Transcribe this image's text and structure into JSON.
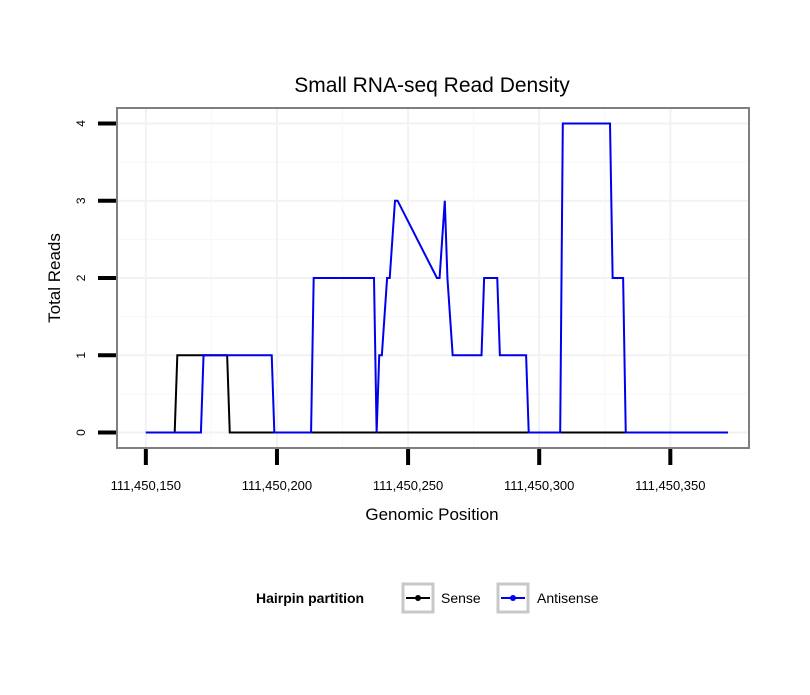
{
  "chart_data": {
    "type": "line",
    "title": "Small RNA-seq Read Density",
    "xlabel": "Genomic Position",
    "ylabel": "Total Reads",
    "xlim": [
      111450139,
      111450380
    ],
    "ylim": [
      -0.2,
      4.2
    ],
    "x_ticks": [
      111450150,
      111450200,
      111450250,
      111450300,
      111450350
    ],
    "x_tick_labels": [
      "111,450,150",
      "111,450,200",
      "111,450,250",
      "111,450,300",
      "111,450,350"
    ],
    "y_ticks": [
      0,
      1,
      2,
      3,
      4
    ],
    "y_tick_labels": [
      "0",
      "1",
      "2",
      "3",
      "4"
    ],
    "grid": true,
    "legend_position": "bottom",
    "legend_title": "Hairpin partition",
    "series": [
      {
        "name": "Sense",
        "color": "#000000",
        "x": [
          111450150,
          111450161,
          111450162,
          111450181,
          111450182,
          111450372
        ],
        "y": [
          0,
          0,
          1,
          1,
          0,
          0
        ]
      },
      {
        "name": "Antisense",
        "color": "#0000ee",
        "x": [
          111450150,
          111450171,
          111450172,
          111450198,
          111450199,
          111450213,
          111450214,
          111450237,
          111450238,
          111450239,
          111450240,
          111450242,
          111450243,
          111450245,
          111450246,
          111450261,
          111450262,
          111450264,
          111450265,
          111450267,
          111450268,
          111450278,
          111450279,
          111450284,
          111450285,
          111450295,
          111450296,
          111450308,
          111450309,
          111450327,
          111450328,
          111450332,
          111450333,
          111450372
        ],
        "y": [
          0,
          0,
          1,
          1,
          0,
          0,
          2,
          2,
          0,
          1,
          1,
          2,
          2,
          3,
          3,
          2,
          2,
          3,
          2,
          1,
          1,
          1,
          2,
          2,
          1,
          1,
          0,
          0,
          4,
          4,
          2,
          2,
          0,
          0
        ]
      }
    ]
  }
}
